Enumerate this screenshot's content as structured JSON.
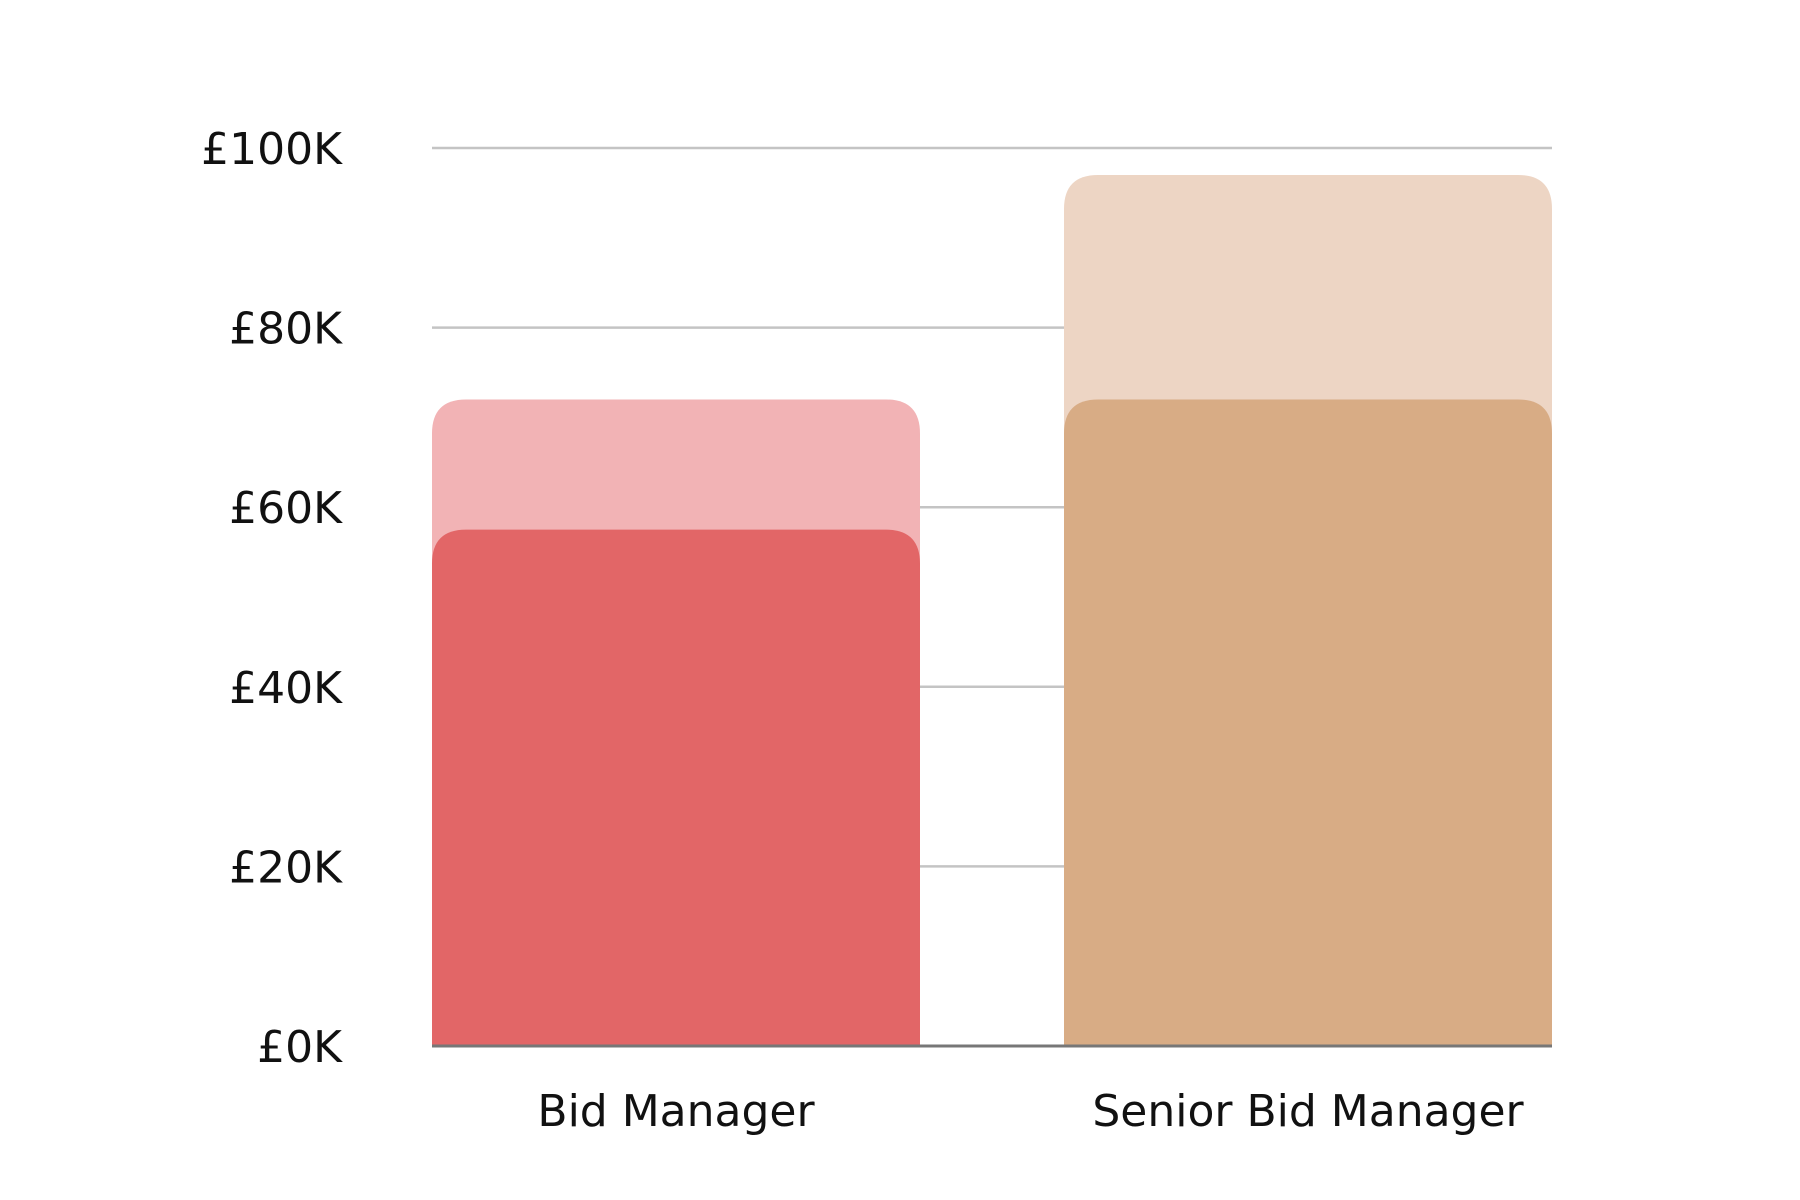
{
  "chart_data": {
    "type": "bar",
    "title": "",
    "xlabel": "",
    "ylabel": "",
    "categories": [
      "Bid Manager",
      "Senior Bid Manager"
    ],
    "series": [
      {
        "values": [
          57500,
          72000
        ],
        "colors": [
          "#e26667",
          "#d8ac85"
        ]
      },
      {
        "values": [
          72000,
          97000
        ],
        "colors": [
          "#f2b3b5",
          "#edd5c4"
        ]
      }
    ],
    "ylim": [
      0,
      100000
    ],
    "y_ticks": [
      0,
      20000,
      40000,
      60000,
      80000,
      100000
    ],
    "y_tick_labels": [
      "£0K",
      "£20K",
      "£40K",
      "£60K",
      "£80K",
      "£100K"
    ],
    "grid": true,
    "legend": "none"
  }
}
